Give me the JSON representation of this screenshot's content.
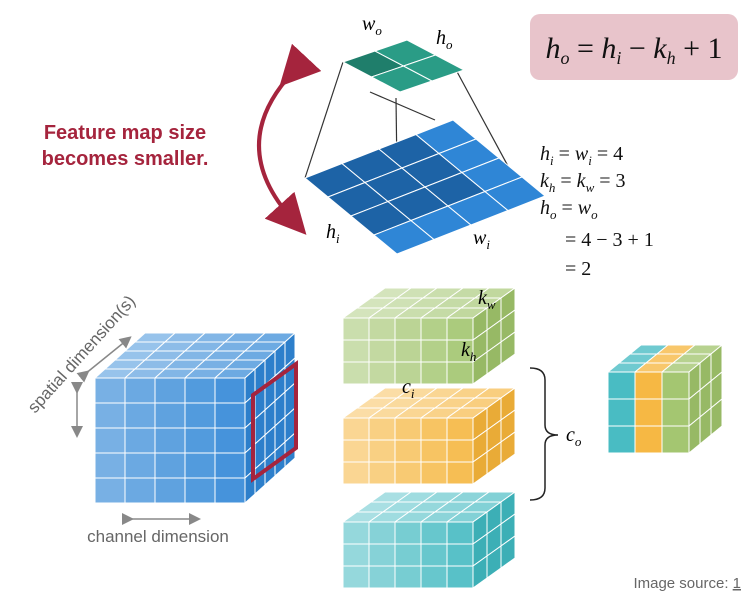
{
  "formula": {
    "lhs": "h",
    "lhs_sub": "o",
    "eq": " = ",
    "a": "h",
    "a_sub": "i",
    "minus": " − ",
    "b": "k",
    "b_sub": "h",
    "plus": " + 1",
    "box_color": "#e8c4cb"
  },
  "top_grid": {
    "w_label": "w",
    "w_sub": "o",
    "h_label": "h",
    "h_sub": "o"
  },
  "input_grid": {
    "h_label": "h",
    "h_sub": "i",
    "w_label": "w",
    "w_sub": "i"
  },
  "annotation": {
    "line1": "Feature map size",
    "line2": "becomes smaller.",
    "color": "#a5243d"
  },
  "equations": {
    "e1": [
      "h",
      "i",
      " = ",
      "w",
      "i",
      " = 4"
    ],
    "e2": [
      "k",
      "h",
      " = ",
      "k",
      "w",
      " = 3"
    ],
    "e3": [
      "h",
      "o",
      " = ",
      "w",
      "o",
      ""
    ],
    "e4": "= 4 − 3 + 1",
    "e5": "= 2"
  },
  "input_cube": {
    "spatial_label": "spatial dimension(s)",
    "channel_label": "channel dimension"
  },
  "kernels": {
    "kw": "k",
    "kw_sub": "w",
    "kh": "k",
    "kh_sub": "h",
    "ci": "c",
    "ci_sub": "i",
    "co": "c",
    "co_sub": "o"
  },
  "source": {
    "text": "Image source: ",
    "link": "1"
  },
  "colors": {
    "blue": "#2f86d6",
    "green": "#9fc36a",
    "orange": "#f5b43a",
    "teal": "#3fb8c0",
    "top_teal": "#2a9c86",
    "frame_red": "#a5243d"
  }
}
